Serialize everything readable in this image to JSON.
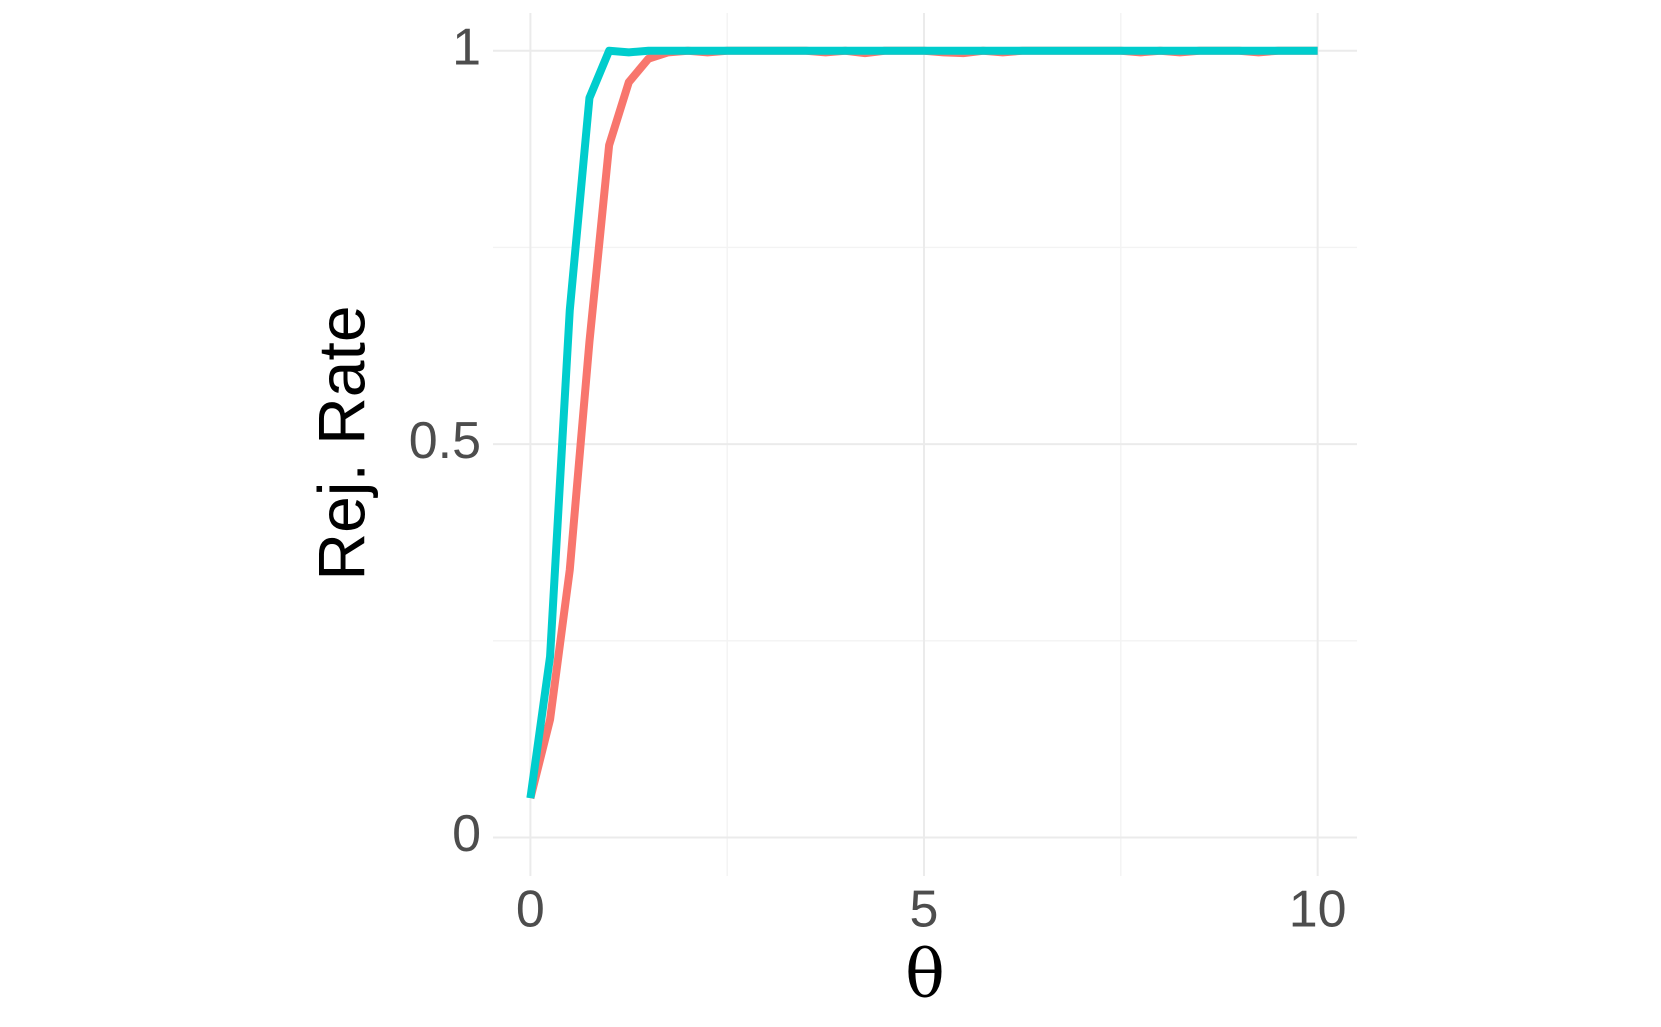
{
  "chart_data": {
    "type": "line",
    "x_label": "θ",
    "y_label": "Rej. Rate",
    "x": [
      0,
      0.25,
      0.5,
      0.75,
      1,
      1.25,
      1.5,
      1.75,
      2,
      2.25,
      2.5,
      2.75,
      3,
      3.25,
      3.5,
      3.75,
      4,
      4.25,
      4.5,
      4.75,
      5,
      5.25,
      5.5,
      5.75,
      6,
      6.25,
      6.5,
      6.75,
      7,
      7.25,
      7.5,
      7.75,
      8,
      8.25,
      8.5,
      8.75,
      9,
      9.25,
      9.5,
      9.75,
      10
    ],
    "series": [
      {
        "color": "#F8766D",
        "values": [
          0.05,
          0.15,
          0.34,
          0.63,
          0.88,
          0.96,
          0.99,
          0.998,
          1,
          0.998,
          1,
          1,
          1,
          1,
          1,
          0.998,
          1,
          0.997,
          1,
          1,
          1,
          0.998,
          0.997,
          1,
          0.998,
          1,
          1,
          1,
          1,
          1,
          1,
          0.998,
          1,
          0.998,
          1,
          1,
          1,
          0.998,
          1,
          1,
          1
        ]
      },
      {
        "color": "#00CDCD",
        "values": [
          0.05,
          0.23,
          0.67,
          0.94,
          1,
          0.998,
          1,
          1,
          1,
          1,
          1,
          1,
          1,
          1,
          1,
          1,
          1,
          1,
          1,
          1,
          1,
          1,
          1,
          1,
          1,
          1,
          1,
          1,
          1,
          1,
          1,
          1,
          1,
          1,
          1,
          1,
          1,
          1,
          1,
          1,
          1
        ]
      }
    ],
    "xlim": [
      -0.475,
      10.5
    ],
    "ylim": [
      -0.049,
      1.048
    ],
    "xticks": [
      0,
      5,
      10
    ],
    "yticks": [
      0,
      0.5,
      1
    ],
    "x_minor_ticks": [
      2.5,
      7.5
    ],
    "y_minor_ticks": [
      0.25,
      0.75
    ],
    "grid": true
  }
}
